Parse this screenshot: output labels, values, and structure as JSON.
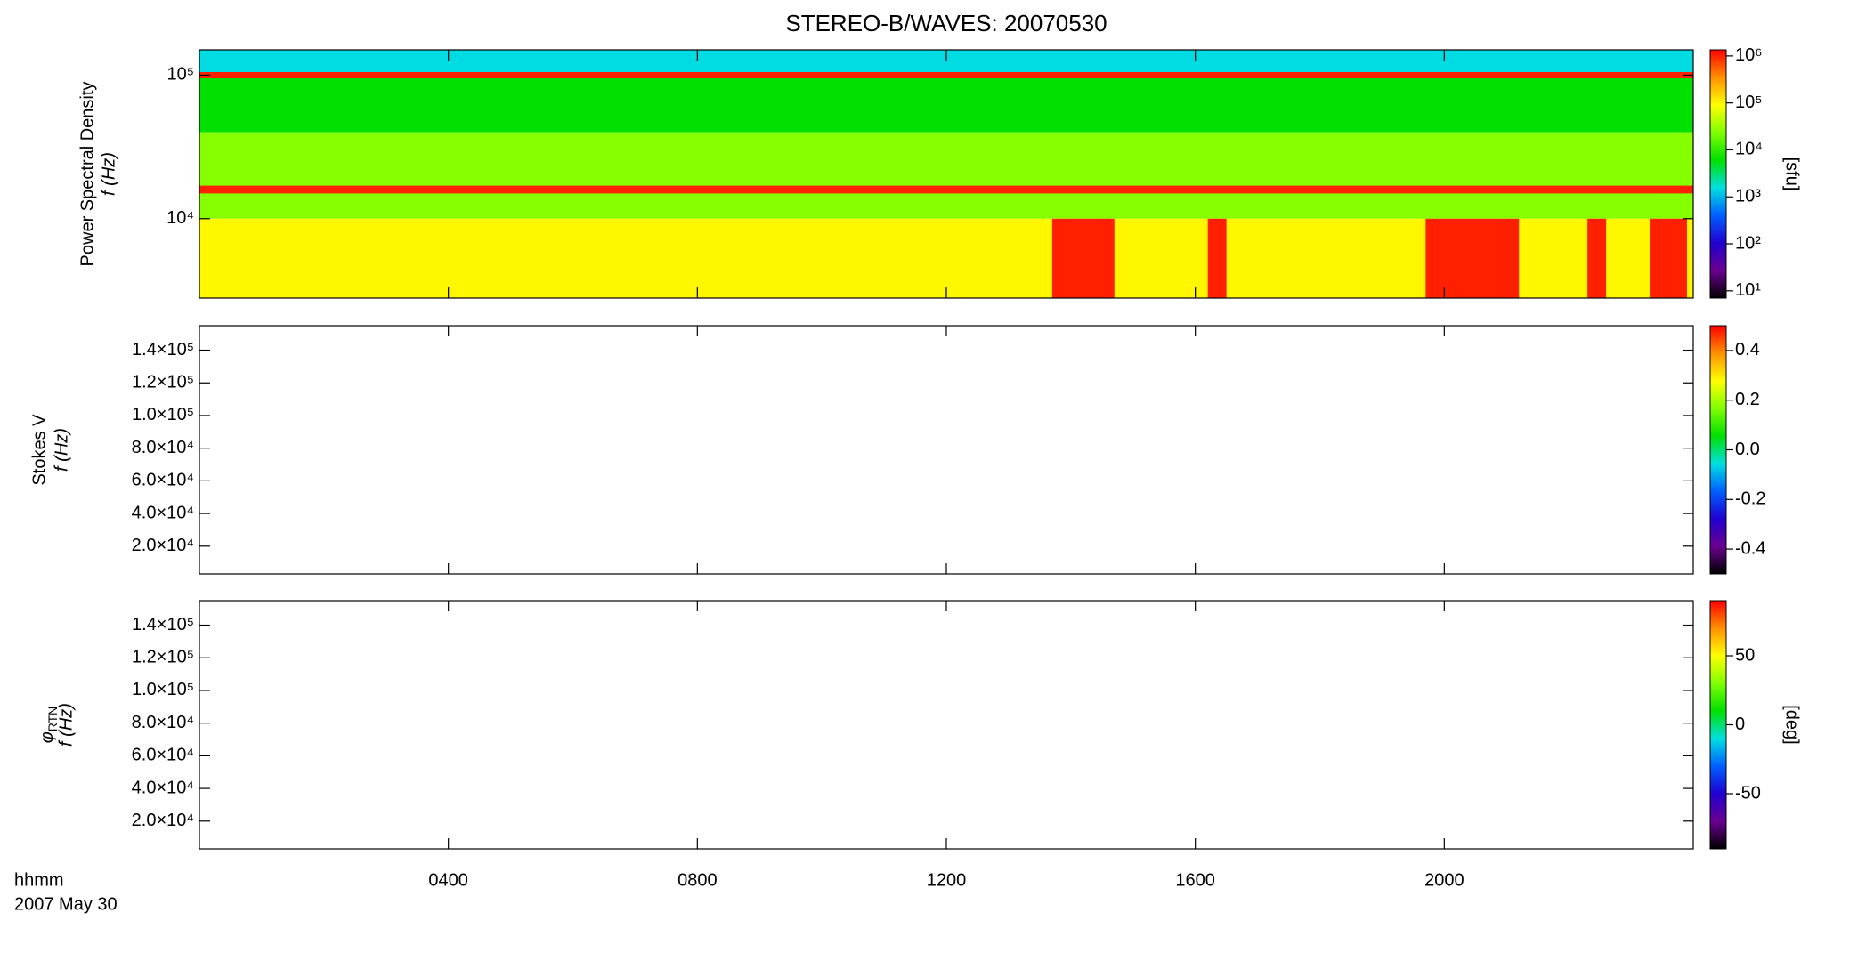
{
  "chart_data": [
    {
      "type": "spectrogram",
      "title": "STEREO-B/WAVES: 20070530",
      "ylabel": [
        "Power Spectral Density",
        "f (Hz)"
      ],
      "xlim": [
        0,
        24
      ],
      "xticks": [
        {
          "value": 4,
          "label": "0400"
        },
        {
          "value": 8,
          "label": "0800"
        },
        {
          "value": 12,
          "label": "1200"
        },
        {
          "value": 16,
          "label": "1600"
        },
        {
          "value": 20,
          "label": "2000"
        }
      ],
      "ylim": [
        2800,
        150000
      ],
      "log_y": true,
      "yticks": [
        {
          "value": 10000,
          "label": "10⁴"
        },
        {
          "value": 100000,
          "label": "10⁵"
        }
      ],
      "colors": [
        "#000000",
        "#6a0090",
        "#2000d0",
        "#0060ff",
        "#00e0e0",
        "#00e000",
        "#80ff00",
        "#ffff00",
        "#ff9000",
        "#ff0000"
      ],
      "clim": [
        7,
        1350000
      ],
      "log_c": true,
      "cticks": [
        {
          "value": 10,
          "label": "10¹"
        },
        {
          "value": 100,
          "label": "10²"
        },
        {
          "value": 1000,
          "label": "10³"
        },
        {
          "value": 10000,
          "label": "10⁴"
        },
        {
          "value": 100000,
          "label": "10⁵"
        },
        {
          "value": 1000000,
          "label": "10⁶"
        }
      ],
      "clabel": "[sfu]",
      "layers": [
        {
          "y": [
            100000,
            150000
          ],
          "x": [
            0,
            24
          ],
          "value": 1500
        },
        {
          "y": [
            40000,
            100000
          ],
          "x": [
            0,
            24
          ],
          "value": 6000
        },
        {
          "y": [
            10000,
            40000
          ],
          "x": [
            0,
            24
          ],
          "value": 25000
        },
        {
          "y": [
            2800,
            10000
          ],
          "x": [
            0,
            24
          ],
          "value": 100000
        },
        {
          "y": [
            95000,
            105000
          ],
          "x": [
            0,
            24
          ],
          "value": 1000000
        },
        {
          "y": [
            15000,
            17000
          ],
          "x": [
            0,
            24
          ],
          "value": 1000000
        },
        {
          "y": [
            2800,
            10000
          ],
          "x": [
            13.7,
            14.7
          ],
          "value": 1000000
        },
        {
          "y": [
            2800,
            10000
          ],
          "x": [
            16.2,
            16.5
          ],
          "value": 1000000
        },
        {
          "y": [
            2800,
            10000
          ],
          "x": [
            19.7,
            21.2
          ],
          "value": 1000000
        },
        {
          "y": [
            2800,
            10000
          ],
          "x": [
            22.3,
            22.6
          ],
          "value": 1000000
        },
        {
          "y": [
            2800,
            10000
          ],
          "x": [
            23.3,
            23.9
          ],
          "value": 1000000
        }
      ]
    },
    {
      "type": "spectrogram",
      "ylabel": [
        "Stokes V",
        "f (Hz)"
      ],
      "xlim": [
        0,
        24
      ],
      "xticks": [
        {
          "value": 4,
          "label": "0400"
        },
        {
          "value": 8,
          "label": "0800"
        },
        {
          "value": 12,
          "label": "1200"
        },
        {
          "value": 16,
          "label": "1600"
        },
        {
          "value": 20,
          "label": "2000"
        }
      ],
      "ylim": [
        3000,
        155000
      ],
      "log_y": false,
      "yticks": [
        {
          "value": 20000,
          "label": "2.0×10⁴"
        },
        {
          "value": 40000,
          "label": "4.0×10⁴"
        },
        {
          "value": 60000,
          "label": "6.0×10⁴"
        },
        {
          "value": 80000,
          "label": "8.0×10⁴"
        },
        {
          "value": 100000,
          "label": "1.0×10⁵"
        },
        {
          "value": 120000,
          "label": "1.2×10⁵"
        },
        {
          "value": 140000,
          "label": "1.4×10⁵"
        }
      ],
      "colors": [
        "#000000",
        "#6a0090",
        "#2000d0",
        "#0060ff",
        "#00e0e0",
        "#00e000",
        "#80ff00",
        "#ffff00",
        "#ff9000",
        "#ff0000"
      ],
      "clim": [
        -0.5,
        0.5
      ],
      "log_c": false,
      "cticks": [
        -0.4,
        -0.2,
        {
          "value": 0,
          "label": "0.0"
        },
        0.2,
        0.4
      ],
      "layers": []
    },
    {
      "type": "spectrogram",
      "ylabel": [
        "φ",
        "RTN",
        "f (Hz)"
      ],
      "xlim": [
        0,
        24
      ],
      "xticks": [
        {
          "value": 4,
          "label": "0400"
        },
        {
          "value": 8,
          "label": "0800"
        },
        {
          "value": 12,
          "label": "1200"
        },
        {
          "value": 16,
          "label": "1600"
        },
        {
          "value": 20,
          "label": "2000"
        }
      ],
      "ylim": [
        3000,
        155000
      ],
      "log_y": false,
      "yticks": [
        {
          "value": 20000,
          "label": "2.0×10⁴"
        },
        {
          "value": 40000,
          "label": "4.0×10⁴"
        },
        {
          "value": 60000,
          "label": "6.0×10⁴"
        },
        {
          "value": 80000,
          "label": "8.0×10⁴"
        },
        {
          "value": 100000,
          "label": "1.0×10⁵"
        },
        {
          "value": 120000,
          "label": "1.2×10⁵"
        },
        {
          "value": 140000,
          "label": "1.4×10⁵"
        }
      ],
      "colors": [
        "#000000",
        "#6a0090",
        "#2000d0",
        "#0060ff",
        "#00e0e0",
        "#00e000",
        "#80ff00",
        "#ffff00",
        "#ff9000",
        "#ff0000"
      ],
      "clim": [
        -90,
        90
      ],
      "log_c": false,
      "cticks": [
        -50,
        0,
        50
      ],
      "clabel": "[deg]",
      "xlabel": [
        "hhmm",
        "2007 May 30"
      ],
      "layers": []
    }
  ]
}
